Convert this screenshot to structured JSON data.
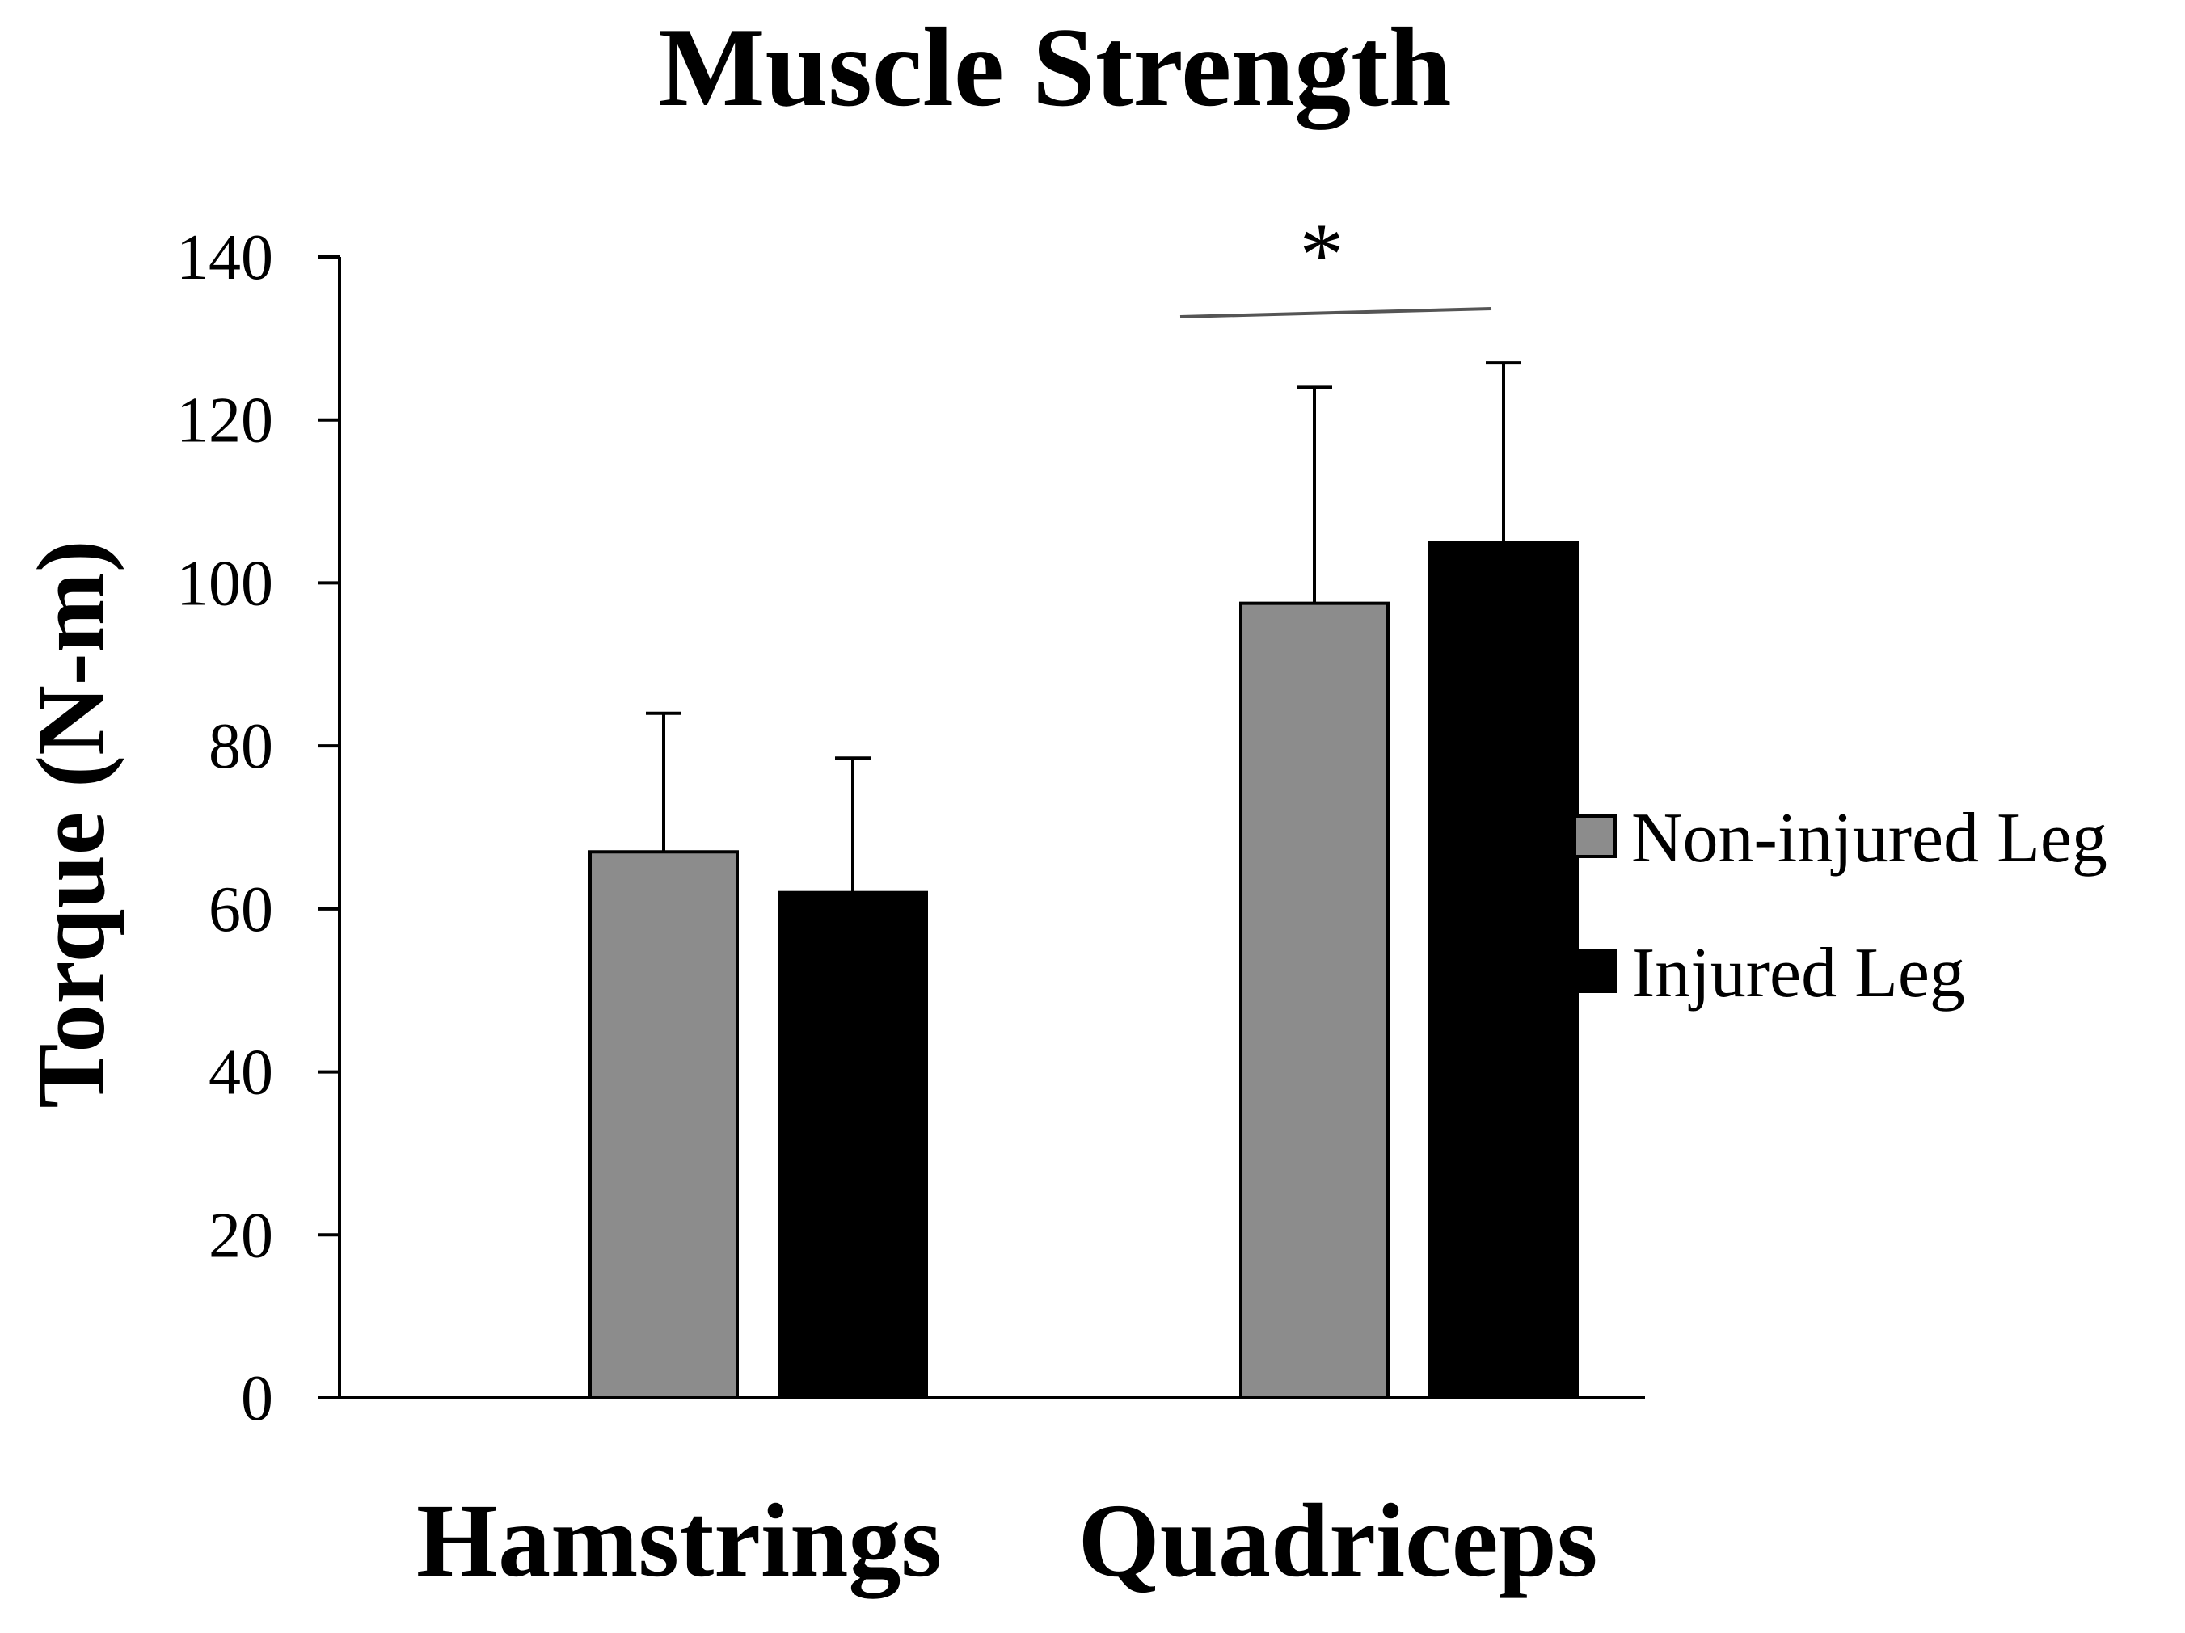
{
  "chart_data": {
    "type": "bar",
    "title": "Muscle Strength",
    "xlabel": "",
    "ylabel": "Torque (N-m)",
    "ylim": [
      0,
      140
    ],
    "yticks": [
      0,
      20,
      40,
      60,
      80,
      100,
      120,
      140
    ],
    "categories": [
      "Hamstrings",
      "Quadriceps"
    ],
    "series": [
      {
        "name": "Non-injured Leg",
        "color": "#8c8c8c",
        "values": [
          67,
          97.5
        ],
        "errors": [
          17,
          26.5
        ]
      },
      {
        "name": "Injured Leg",
        "color": "#000000",
        "values": [
          62,
          105
        ],
        "errors": [
          16.5,
          22
        ]
      }
    ],
    "legend_position": "right",
    "grid": false,
    "annotations": [
      {
        "text": "*",
        "category": "Quadriceps",
        "type": "significance"
      }
    ]
  }
}
